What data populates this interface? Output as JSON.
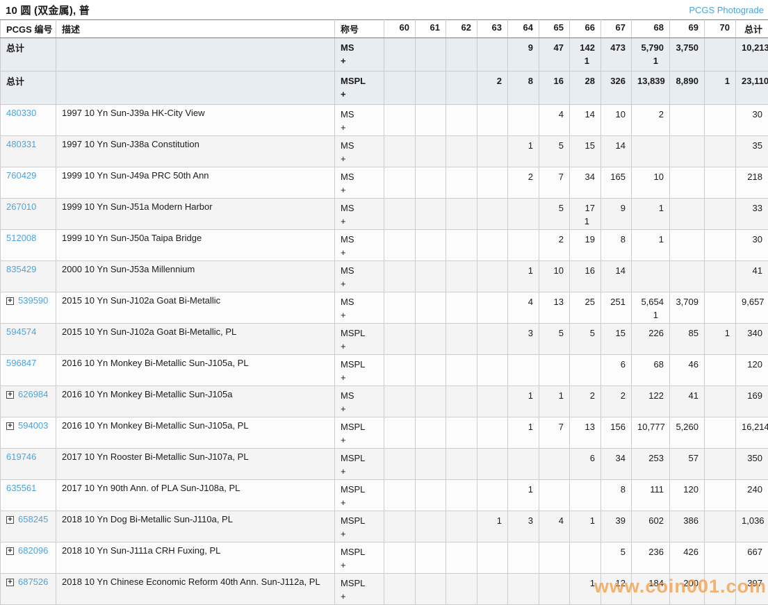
{
  "page": {
    "title": "10 圆 (双金属), 普",
    "photograde_link": "PCGS Photograde"
  },
  "icons": {
    "expand_glyph": "+"
  },
  "colors": {
    "link_blue": "#4fa3dc",
    "summary_row_bg": "#e8edf1",
    "alt_row_bg": "#f4f4f4",
    "watermark_orange": "#f49b42"
  },
  "watermark": "www.coin001.com",
  "table": {
    "headers": [
      "PCGS 编号",
      "描述",
      "称号",
      "60",
      "61",
      "62",
      "63",
      "64",
      "65",
      "66",
      "67",
      "68",
      "69",
      "70",
      "总计"
    ],
    "summary_rows": [
      {
        "label": "总计",
        "description": "",
        "designation": "MS",
        "plus": "+",
        "grades": [
          "",
          "",
          "",
          "",
          "9",
          "47",
          "142",
          "473",
          "5,790",
          "3,750",
          ""
        ],
        "grades_plus": [
          "",
          "",
          "",
          "",
          "",
          "",
          "1",
          "",
          "1",
          "",
          ""
        ],
        "total": "10,213"
      },
      {
        "label": "总计",
        "description": "",
        "designation": "MSPL",
        "plus": "+",
        "grades": [
          "",
          "",
          "",
          "2",
          "8",
          "16",
          "28",
          "326",
          "13,839",
          "8,890",
          "1"
        ],
        "grades_plus": [
          "",
          "",
          "",
          "",
          "",
          "",
          "",
          "",
          "",
          "",
          ""
        ],
        "total": "23,110"
      }
    ],
    "rows": [
      {
        "pcgs_number": "480330",
        "expandable": false,
        "description": "1997 10 Yn Sun-J39a HK-City View",
        "designation": "MS",
        "plus": "+",
        "grades": [
          "",
          "",
          "",
          "",
          "",
          "4",
          "14",
          "10",
          "2",
          "",
          ""
        ],
        "grades_plus": [
          "",
          "",
          "",
          "",
          "",
          "",
          "",
          "",
          "",
          "",
          ""
        ],
        "total": "30"
      },
      {
        "pcgs_number": "480331",
        "expandable": false,
        "description": "1997 10 Yn Sun-J38a Constitution",
        "designation": "MS",
        "plus": "+",
        "grades": [
          "",
          "",
          "",
          "",
          "1",
          "5",
          "15",
          "14",
          "",
          "",
          ""
        ],
        "grades_plus": [
          "",
          "",
          "",
          "",
          "",
          "",
          "",
          "",
          "",
          "",
          ""
        ],
        "total": "35"
      },
      {
        "pcgs_number": "760429",
        "expandable": false,
        "description": "1999 10 Yn Sun-J49a PRC 50th Ann",
        "designation": "MS",
        "plus": "+",
        "grades": [
          "",
          "",
          "",
          "",
          "2",
          "7",
          "34",
          "165",
          "10",
          "",
          ""
        ],
        "grades_plus": [
          "",
          "",
          "",
          "",
          "",
          "",
          "",
          "",
          "",
          "",
          ""
        ],
        "total": "218"
      },
      {
        "pcgs_number": "267010",
        "expandable": false,
        "description": "1999 10 Yn Sun-J51a Modern Harbor",
        "designation": "MS",
        "plus": "+",
        "grades": [
          "",
          "",
          "",
          "",
          "",
          "5",
          "17",
          "9",
          "1",
          "",
          ""
        ],
        "grades_plus": [
          "",
          "",
          "",
          "",
          "",
          "",
          "1",
          "",
          "",
          "",
          ""
        ],
        "total": "33"
      },
      {
        "pcgs_number": "512008",
        "expandable": false,
        "description": "1999 10 Yn Sun-J50a Taipa Bridge",
        "designation": "MS",
        "plus": "+",
        "grades": [
          "",
          "",
          "",
          "",
          "",
          "2",
          "19",
          "8",
          "1",
          "",
          ""
        ],
        "grades_plus": [
          "",
          "",
          "",
          "",
          "",
          "",
          "",
          "",
          "",
          "",
          ""
        ],
        "total": "30"
      },
      {
        "pcgs_number": "835429",
        "expandable": false,
        "description": "2000 10 Yn Sun-J53a Millennium",
        "designation": "MS",
        "plus": "+",
        "grades": [
          "",
          "",
          "",
          "",
          "1",
          "10",
          "16",
          "14",
          "",
          "",
          ""
        ],
        "grades_plus": [
          "",
          "",
          "",
          "",
          "",
          "",
          "",
          "",
          "",
          "",
          ""
        ],
        "total": "41"
      },
      {
        "pcgs_number": "539590",
        "expandable": true,
        "description": "2015 10 Yn Sun-J102a Goat Bi-Metallic",
        "designation": "MS",
        "plus": "+",
        "grades": [
          "",
          "",
          "",
          "",
          "4",
          "13",
          "25",
          "251",
          "5,654",
          "3,709",
          ""
        ],
        "grades_plus": [
          "",
          "",
          "",
          "",
          "",
          "",
          "",
          "",
          "1",
          "",
          ""
        ],
        "total": "9,657"
      },
      {
        "pcgs_number": "594574",
        "expandable": false,
        "description": "2015 10 Yn Sun-J102a Goat Bi-Metallic, PL",
        "designation": "MSPL",
        "plus": "+",
        "grades": [
          "",
          "",
          "",
          "",
          "3",
          "5",
          "5",
          "15",
          "226",
          "85",
          "1"
        ],
        "grades_plus": [
          "",
          "",
          "",
          "",
          "",
          "",
          "",
          "",
          "",
          "",
          ""
        ],
        "total": "340"
      },
      {
        "pcgs_number": "596847",
        "expandable": false,
        "description": "2016 10 Yn Monkey Bi-Metallic Sun-J105a, PL",
        "designation": "MSPL",
        "plus": "+",
        "grades": [
          "",
          "",
          "",
          "",
          "",
          "",
          "",
          "6",
          "68",
          "46",
          ""
        ],
        "grades_plus": [
          "",
          "",
          "",
          "",
          "",
          "",
          "",
          "",
          "",
          "",
          ""
        ],
        "total": "120"
      },
      {
        "pcgs_number": "626984",
        "expandable": true,
        "description": "2016 10 Yn Monkey Bi-Metallic Sun-J105a",
        "designation": "MS",
        "plus": "+",
        "grades": [
          "",
          "",
          "",
          "",
          "1",
          "1",
          "2",
          "2",
          "122",
          "41",
          ""
        ],
        "grades_plus": [
          "",
          "",
          "",
          "",
          "",
          "",
          "",
          "",
          "",
          "",
          ""
        ],
        "total": "169"
      },
      {
        "pcgs_number": "594003",
        "expandable": true,
        "description": "2016 10 Yn Monkey Bi-Metallic Sun-J105a, PL",
        "designation": "MSPL",
        "plus": "+",
        "grades": [
          "",
          "",
          "",
          "",
          "1",
          "7",
          "13",
          "156",
          "10,777",
          "5,260",
          ""
        ],
        "grades_plus": [
          "",
          "",
          "",
          "",
          "",
          "",
          "",
          "",
          "",
          "",
          ""
        ],
        "total": "16,214"
      },
      {
        "pcgs_number": "619746",
        "expandable": false,
        "description": "2017 10 Yn Rooster Bi-Metallic Sun-J107a, PL",
        "designation": "MSPL",
        "plus": "+",
        "grades": [
          "",
          "",
          "",
          "",
          "",
          "",
          "6",
          "34",
          "253",
          "57",
          ""
        ],
        "grades_plus": [
          "",
          "",
          "",
          "",
          "",
          "",
          "",
          "",
          "",
          "",
          ""
        ],
        "total": "350"
      },
      {
        "pcgs_number": "635561",
        "expandable": false,
        "description": "2017 10 Yn 90th Ann. of PLA Sun-J108a, PL",
        "designation": "MSPL",
        "plus": "+",
        "grades": [
          "",
          "",
          "",
          "",
          "1",
          "",
          "",
          "8",
          "111",
          "120",
          ""
        ],
        "grades_plus": [
          "",
          "",
          "",
          "",
          "",
          "",
          "",
          "",
          "",
          "",
          ""
        ],
        "total": "240"
      },
      {
        "pcgs_number": "658245",
        "expandable": true,
        "description": "2018 10 Yn Dog Bi-Metallic Sun-J110a, PL",
        "designation": "MSPL",
        "plus": "+",
        "grades": [
          "",
          "",
          "",
          "1",
          "3",
          "4",
          "1",
          "39",
          "602",
          "386",
          ""
        ],
        "grades_plus": [
          "",
          "",
          "",
          "",
          "",
          "",
          "",
          "",
          "",
          "",
          ""
        ],
        "total": "1,036"
      },
      {
        "pcgs_number": "682096",
        "expandable": true,
        "description": "2018 10 Yn Sun-J111a CRH Fuxing, PL",
        "designation": "MSPL",
        "plus": "+",
        "grades": [
          "",
          "",
          "",
          "",
          "",
          "",
          "",
          "5",
          "236",
          "426",
          ""
        ],
        "grades_plus": [
          "",
          "",
          "",
          "",
          "",
          "",
          "",
          "",
          "",
          "",
          ""
        ],
        "total": "667"
      },
      {
        "pcgs_number": "687526",
        "expandable": true,
        "description": "2018 10 Yn Chinese Economic Reform 40th Ann. Sun-J112a, PL",
        "designation": "MSPL",
        "plus": "+",
        "grades": [
          "",
          "",
          "",
          "",
          "",
          "",
          "1",
          "12",
          "184",
          "200",
          ""
        ],
        "grades_plus": [
          "",
          "",
          "",
          "",
          "",
          "",
          "",
          "",
          "",
          "",
          ""
        ],
        "total": "397"
      }
    ]
  }
}
